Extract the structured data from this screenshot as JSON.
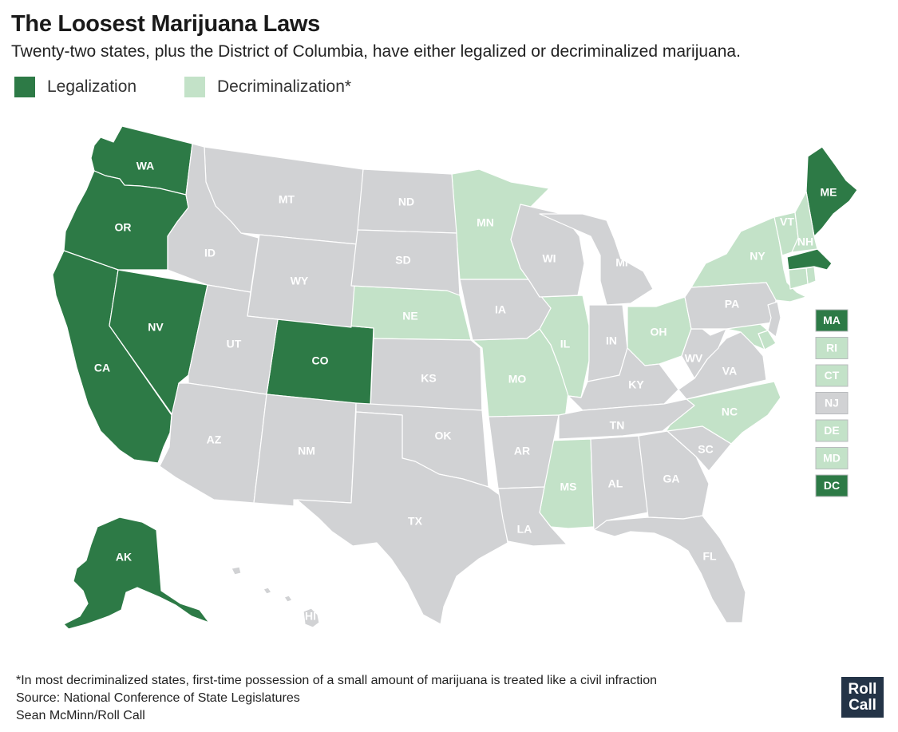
{
  "title": "The Loosest Marijuana Laws",
  "subtitle": "Twenty-two states, plus the District of Columbia, have either legalized or decriminalized marijuana.",
  "colors": {
    "legalization": "#2d7a46",
    "decriminalization": "#c3e2c8",
    "none": "#d1d2d4",
    "border": "#ffffff",
    "logo_bg": "#243447"
  },
  "legend": [
    {
      "key": "legalization",
      "label": "Legalization"
    },
    {
      "key": "decriminalization",
      "label": "Decriminalization*"
    }
  ],
  "states": [
    {
      "abbr": "WA",
      "status": "legalization"
    },
    {
      "abbr": "OR",
      "status": "legalization"
    },
    {
      "abbr": "CA",
      "status": "legalization"
    },
    {
      "abbr": "NV",
      "status": "legalization"
    },
    {
      "abbr": "AK",
      "status": "legalization"
    },
    {
      "abbr": "CO",
      "status": "legalization"
    },
    {
      "abbr": "ME",
      "status": "legalization"
    },
    {
      "abbr": "MA",
      "status": "legalization"
    },
    {
      "abbr": "DC",
      "status": "legalization"
    },
    {
      "abbr": "MN",
      "status": "decriminalization"
    },
    {
      "abbr": "NE",
      "status": "decriminalization"
    },
    {
      "abbr": "MO",
      "status": "decriminalization"
    },
    {
      "abbr": "IL",
      "status": "decriminalization"
    },
    {
      "abbr": "OH",
      "status": "decriminalization"
    },
    {
      "abbr": "MS",
      "status": "decriminalization"
    },
    {
      "abbr": "NC",
      "status": "decriminalization"
    },
    {
      "abbr": "NY",
      "status": "decriminalization"
    },
    {
      "abbr": "VT",
      "status": "decriminalization"
    },
    {
      "abbr": "NH",
      "status": "decriminalization"
    },
    {
      "abbr": "RI",
      "status": "decriminalization"
    },
    {
      "abbr": "CT",
      "status": "decriminalization"
    },
    {
      "abbr": "DE",
      "status": "decriminalization"
    },
    {
      "abbr": "MD",
      "status": "decriminalization"
    },
    {
      "abbr": "MT",
      "status": "none"
    },
    {
      "abbr": "ID",
      "status": "none"
    },
    {
      "abbr": "WY",
      "status": "none"
    },
    {
      "abbr": "UT",
      "status": "none"
    },
    {
      "abbr": "AZ",
      "status": "none"
    },
    {
      "abbr": "NM",
      "status": "none"
    },
    {
      "abbr": "ND",
      "status": "none"
    },
    {
      "abbr": "SD",
      "status": "none"
    },
    {
      "abbr": "KS",
      "status": "none"
    },
    {
      "abbr": "OK",
      "status": "none"
    },
    {
      "abbr": "TX",
      "status": "none"
    },
    {
      "abbr": "IA",
      "status": "none"
    },
    {
      "abbr": "AR",
      "status": "none"
    },
    {
      "abbr": "LA",
      "status": "none"
    },
    {
      "abbr": "WI",
      "status": "none"
    },
    {
      "abbr": "MI",
      "status": "none"
    },
    {
      "abbr": "IN",
      "status": "none"
    },
    {
      "abbr": "KY",
      "status": "none"
    },
    {
      "abbr": "TN",
      "status": "none"
    },
    {
      "abbr": "AL",
      "status": "none"
    },
    {
      "abbr": "GA",
      "status": "none"
    },
    {
      "abbr": "FL",
      "status": "none"
    },
    {
      "abbr": "SC",
      "status": "none"
    },
    {
      "abbr": "VA",
      "status": "none"
    },
    {
      "abbr": "WV",
      "status": "none"
    },
    {
      "abbr": "PA",
      "status": "none"
    },
    {
      "abbr": "NJ",
      "status": "none"
    },
    {
      "abbr": "HI",
      "status": "none"
    }
  ],
  "east_coast_boxes": [
    "MA",
    "RI",
    "CT",
    "NJ",
    "DE",
    "MD",
    "DC"
  ],
  "footnote": {
    "note": "*In most decriminalized states, first-time possession of a small amount of marijuana is treated like a civil infraction",
    "source": "Source: National Conference of State Legislatures",
    "credit": "Sean McMinn/Roll Call"
  },
  "logo": {
    "line1": "Roll",
    "line2": "Call"
  }
}
